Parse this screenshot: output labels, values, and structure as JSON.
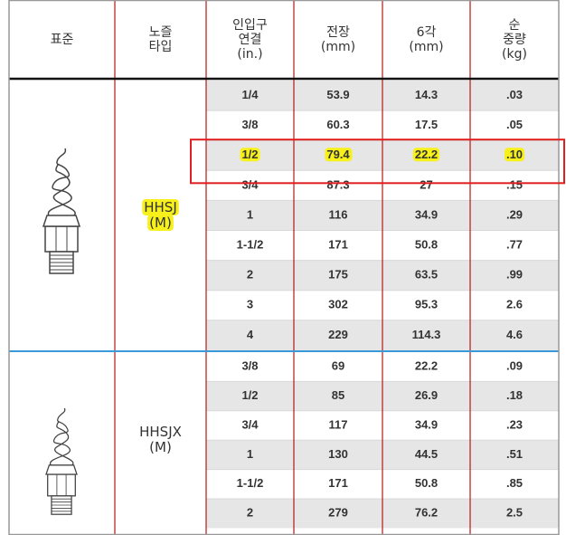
{
  "table": {
    "header": [
      [
        "표준"
      ],
      [
        "노즐",
        "타입"
      ],
      [
        "인입구",
        "연결",
        "(in.)"
      ],
      [
        "전장",
        "(mm)"
      ],
      [
        "6각",
        "(mm)"
      ],
      [
        "순",
        "중량",
        "(kg)"
      ]
    ],
    "groups": [
      {
        "type": [
          "HHSJ",
          "(M)"
        ],
        "type_highlight": true,
        "highlight_row": 2,
        "rows": [
          [
            "1/4",
            "53.9",
            "14.3",
            ".03"
          ],
          [
            "3/8",
            "60.3",
            "17.5",
            ".05"
          ],
          [
            "1/2",
            "79.4",
            "22.2",
            ".10"
          ],
          [
            "3/4",
            "87.3",
            "27",
            ".15"
          ],
          [
            "1",
            "116",
            "34.9",
            ".29"
          ],
          [
            "1-1/2",
            "171",
            "50.8",
            ".77"
          ],
          [
            "2",
            "175",
            "63.5",
            ".99"
          ],
          [
            "3",
            "302",
            "95.3",
            "2.6"
          ],
          [
            "4",
            "229",
            "114.3",
            "4.6"
          ]
        ]
      },
      {
        "type": [
          "HHSJX",
          "(M)"
        ],
        "rows": [
          [
            "3/8",
            "69",
            "22.2",
            ".09"
          ],
          [
            "1/2",
            "85",
            "26.9",
            ".18"
          ],
          [
            "3/4",
            "117",
            "34.9",
            ".23"
          ],
          [
            "1",
            "130",
            "44.5",
            ".51"
          ],
          [
            "1-1/2",
            "171",
            "50.8",
            ".85"
          ],
          [
            "2",
            "279",
            "76.2",
            "2.5"
          ]
        ]
      }
    ]
  }
}
